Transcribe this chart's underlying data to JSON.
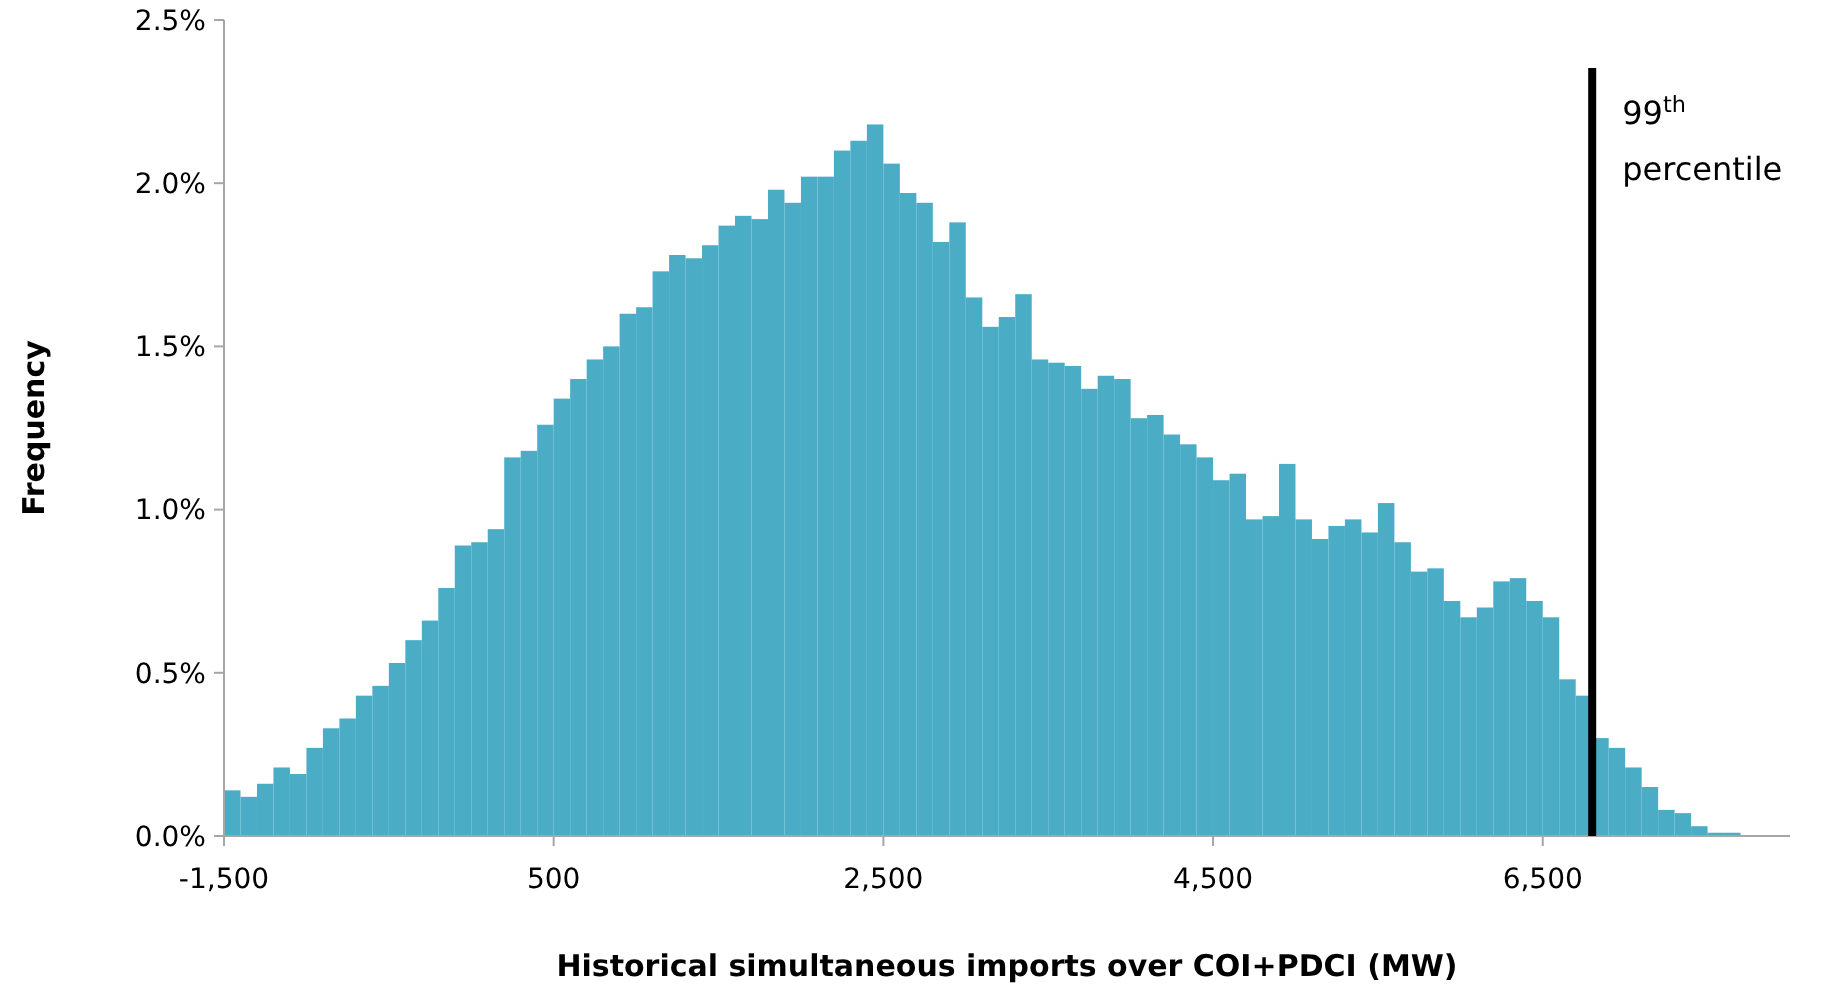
{
  "chart_data": {
    "type": "histogram",
    "xlabel": "Historical simultaneous imports over COI+PDCI (MW)",
    "ylabel": "Frequency",
    "bins": [
      -1500,
      -1400,
      -1300,
      -1200,
      -1100,
      -1000,
      -900,
      -800,
      -700,
      -600,
      -500,
      -400,
      -300,
      -200,
      -100,
      0,
      100,
      200,
      300,
      400,
      500,
      600,
      700,
      800,
      900,
      1000,
      1100,
      1200,
      1300,
      1400,
      1500,
      1600,
      1700,
      1800,
      1900,
      2000,
      2100,
      2200,
      2300,
      2400,
      2500,
      2600,
      2700,
      2800,
      2900,
      3000,
      3100,
      3200,
      3300,
      3400,
      3500,
      3600,
      3700,
      3800,
      3900,
      4000,
      4100,
      4200,
      4300,
      4400,
      4500,
      4600,
      4700,
      4800,
      4900,
      5000,
      5100,
      5200,
      5300,
      5400,
      5500,
      5600,
      5700,
      5800,
      5900,
      6000,
      6100,
      6200,
      6300,
      6400,
      6500,
      6600,
      6700,
      6800,
      6900,
      7000,
      7100,
      7200,
      7300,
      7400,
      7500,
      7600,
      7700,
      7800,
      7900,
      8000
    ],
    "values": [
      0.14,
      0.12,
      0.16,
      0.21,
      0.19,
      0.27,
      0.33,
      0.36,
      0.43,
      0.46,
      0.53,
      0.6,
      0.66,
      0.76,
      0.89,
      0.9,
      0.94,
      1.16,
      1.18,
      1.26,
      1.34,
      1.4,
      1.46,
      1.5,
      1.6,
      1.62,
      1.73,
      1.78,
      1.77,
      1.81,
      1.87,
      1.9,
      1.89,
      1.98,
      1.94,
      2.02,
      2.02,
      2.1,
      2.13,
      2.18,
      2.06,
      1.97,
      1.94,
      1.82,
      1.88,
      1.65,
      1.56,
      1.59,
      1.66,
      1.46,
      1.45,
      1.44,
      1.37,
      1.41,
      1.4,
      1.28,
      1.29,
      1.23,
      1.2,
      1.16,
      1.09,
      1.11,
      0.97,
      0.98,
      1.14,
      0.97,
      0.91,
      0.95,
      0.97,
      0.93,
      1.02,
      0.9,
      0.81,
      0.82,
      0.72,
      0.67,
      0.7,
      0.78,
      0.79,
      0.72,
      0.67,
      0.48,
      0.43,
      0.3,
      0.27,
      0.21,
      0.15,
      0.08,
      0.07,
      0.03,
      0.01,
      0.01,
      0,
      0,
      0
    ],
    "color": "#4bacc6",
    "xlim": [
      -1500,
      8000
    ],
    "xticks": [
      {
        "value": -1500,
        "label": "-1,500"
      },
      500,
      {
        "value": 2500,
        "label": "2,500"
      },
      {
        "value": 4500,
        "label": "4,500"
      },
      {
        "value": 6500,
        "label": "6,500"
      }
    ],
    "ylim": [
      0,
      2.5
    ],
    "yticks": [
      {
        "value": 0,
        "label": "0.0%"
      },
      {
        "value": 0.5,
        "label": "0.5%"
      },
      {
        "value": 1,
        "label": "1.0%"
      },
      {
        "value": 1.5,
        "label": "1.5%"
      },
      {
        "value": 2,
        "label": "2.0%"
      },
      {
        "value": 2.5,
        "label": "2.5%"
      }
    ],
    "ref_lines": [
      {
        "axis": "x",
        "value": 6800,
        "label": "99$^{th}$ percentile",
        "color": "#000000"
      }
    ]
  }
}
